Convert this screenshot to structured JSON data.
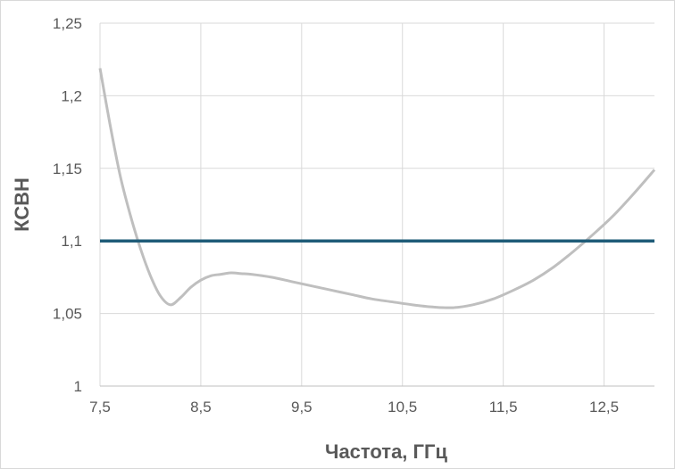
{
  "chart_data": {
    "type": "line",
    "title": "",
    "xlabel": "Частота, ГГц",
    "ylabel": "КСВН",
    "xlim": [
      7.5,
      13.0
    ],
    "ylim": [
      1.0,
      1.25
    ],
    "x_ticks": [
      "7,5",
      "8,5",
      "9,5",
      "10,5",
      "11,5",
      "12,5"
    ],
    "x_tick_values": [
      7.5,
      8.5,
      9.5,
      10.5,
      11.5,
      12.5
    ],
    "y_ticks": [
      "1",
      "1,05",
      "1,1",
      "1,15",
      "1,2",
      "1,25"
    ],
    "y_tick_values": [
      1.0,
      1.05,
      1.1,
      1.15,
      1.2,
      1.25
    ],
    "grid": true,
    "legend": "none",
    "series": [
      {
        "color": "#bfbfbf",
        "x": [
          7.5,
          7.6,
          7.7,
          7.8,
          7.9,
          8.0,
          8.1,
          8.2,
          8.3,
          8.4,
          8.5,
          8.6,
          8.7,
          8.8,
          8.9,
          9.0,
          9.2,
          9.4,
          9.6,
          9.8,
          10.0,
          10.2,
          10.4,
          10.6,
          10.8,
          11.0,
          11.2,
          11.4,
          11.6,
          11.8,
          12.0,
          12.2,
          12.4,
          12.6,
          12.8,
          13.0
        ],
        "y": [
          1.219,
          1.18,
          1.145,
          1.118,
          1.095,
          1.076,
          1.062,
          1.056,
          1.061,
          1.068,
          1.073,
          1.076,
          1.077,
          1.078,
          1.0775,
          1.077,
          1.075,
          1.072,
          1.069,
          1.066,
          1.063,
          1.06,
          1.058,
          1.056,
          1.0545,
          1.054,
          1.056,
          1.06,
          1.066,
          1.073,
          1.082,
          1.093,
          1.105,
          1.118,
          1.133,
          1.149
        ]
      },
      {
        "color": "#1f5c78",
        "x": [
          7.5,
          13.0
        ],
        "y": [
          1.1,
          1.1
        ]
      }
    ]
  }
}
